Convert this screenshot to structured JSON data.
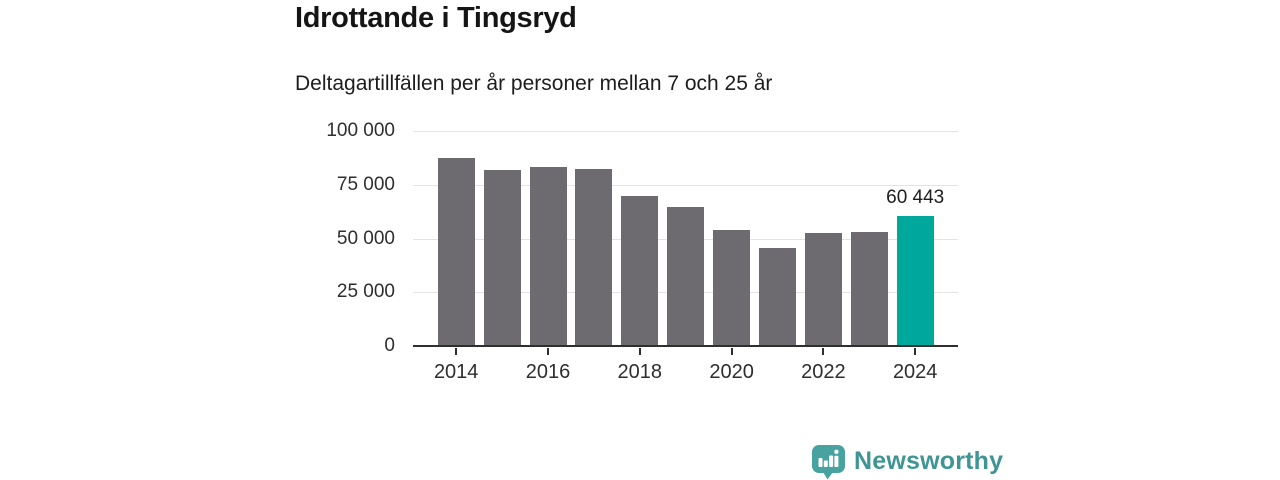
{
  "header": {
    "title": "Idrottande i Tingsryd",
    "subtitle": "Deltagartillfällen per år personer mellan 7 och 25 år"
  },
  "chart_data": {
    "type": "bar",
    "x": [
      2014,
      2015,
      2016,
      2017,
      2018,
      2019,
      2020,
      2021,
      2022,
      2023,
      2024
    ],
    "values": [
      87500,
      81700,
      83100,
      82300,
      70000,
      64800,
      54000,
      45800,
      52500,
      52900,
      60443
    ],
    "highlight_index": 10,
    "value_label": {
      "index": 10,
      "text": "60 443"
    },
    "yticks": [
      {
        "label": "100 000",
        "value": 100000
      },
      {
        "label": "75 000",
        "value": 75000
      },
      {
        "label": "50 000",
        "value": 50000
      },
      {
        "label": "25 000",
        "value": 25000
      },
      {
        "label": "0",
        "value": 0
      }
    ],
    "xticks": [
      2014,
      2016,
      2018,
      2020,
      2022,
      2024
    ],
    "ylim": [
      0,
      100000
    ],
    "grid": "horizontal",
    "legend": "none",
    "colors": {
      "bar": "#6e6b70",
      "highlight": "#00a79b",
      "grid": "#e3e3e3",
      "axis": "#2f2f2f"
    }
  },
  "branding": {
    "logo_text": "Newsworthy",
    "text_color": "#3d9694",
    "icon_color": "#48a3a0",
    "icon": "bar-chart-speech-bubble"
  }
}
